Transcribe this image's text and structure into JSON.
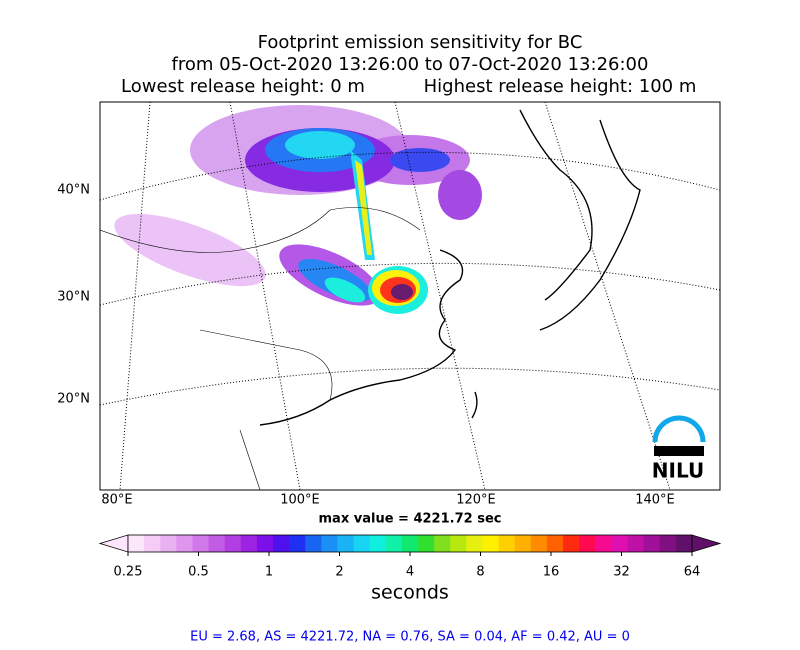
{
  "header": {
    "title_lines": [
      "Footprint emission sensitivity for BC",
      "from 05-Oct-2020 13:26:00 to 07-Oct-2020 13:26:00",
      "Lowest release height: 0 m",
      "Highest release height: 100 m"
    ]
  },
  "map": {
    "lat_labels": [
      "40°N",
      "30°N",
      "20°N"
    ],
    "lon_labels": [
      "80°E",
      "100°E",
      "120°E",
      "140°E"
    ],
    "max_value": "max value = 4221.72 sec",
    "logo": "NILU"
  },
  "colorbar": {
    "label": "seconds",
    "clim": [
      0.25,
      64
    ],
    "ticks": [
      0.25,
      0.5,
      1,
      2,
      4,
      8,
      16,
      32,
      64
    ],
    "log_scale": true,
    "colors": [
      "#fbe6fb",
      "#f4ccf6",
      "#eab1f2",
      "#df95ee",
      "#d178ea",
      "#c15be6",
      "#b03ee3",
      "#9d22e2",
      "#7d10e8",
      "#4f10ee",
      "#2030f2",
      "#1a64f4",
      "#1a90f6",
      "#1ab4f6",
      "#18d4f2",
      "#10eedd",
      "#10f0a8",
      "#10e870",
      "#30e030",
      "#80e020",
      "#b8e810",
      "#e6f010",
      "#fff000",
      "#ffd000",
      "#ffb000",
      "#ff8c00",
      "#ff6000",
      "#ff2a10",
      "#ff0a50",
      "#f50a90",
      "#e010b0",
      "#c010a8",
      "#a01098",
      "#801080",
      "#601068"
    ]
  },
  "footer": "EU = 2.68,  AS = 4221.72,  NA = 0.76,  SA = 0.04,  AF = 0.42,  AU = 0"
}
